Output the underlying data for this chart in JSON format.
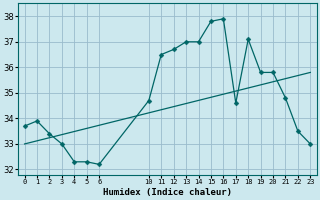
{
  "xlabel": "Humidex (Indice chaleur)",
  "bg_color": "#cce8ee",
  "line_color": "#006666",
  "grid_color": "#99bbcc",
  "x_hours": [
    0,
    1,
    2,
    3,
    4,
    5,
    6,
    10,
    11,
    12,
    13,
    14,
    15,
    16,
    17,
    18,
    19,
    20,
    21,
    22,
    23
  ],
  "y_data": [
    33.7,
    33.9,
    33.4,
    33.0,
    32.3,
    32.3,
    32.2,
    34.7,
    36.5,
    36.7,
    37.0,
    37.0,
    37.8,
    37.9,
    34.6,
    37.1,
    35.8,
    35.8,
    34.8,
    33.5,
    33.0
  ],
  "trend_x": [
    0,
    23
  ],
  "trend_y": [
    33.0,
    35.8
  ],
  "ylim": [
    31.8,
    38.5
  ],
  "xlim": [
    -0.5,
    23.5
  ],
  "yticks": [
    32,
    33,
    34,
    35,
    36,
    37,
    38
  ],
  "xtick_positions": [
    0,
    1,
    2,
    3,
    4,
    5,
    6,
    10,
    11,
    12,
    13,
    14,
    15,
    16,
    17,
    18,
    19,
    20,
    21,
    22,
    23
  ],
  "xtick_labels": [
    "0",
    "1",
    "2",
    "3",
    "4",
    "5",
    "6",
    "10",
    "11",
    "12",
    "13",
    "14",
    "15",
    "16",
    "17",
    "18",
    "19",
    "20",
    "21",
    "22",
    "23"
  ],
  "marker_size": 2.5,
  "linewidth": 0.9
}
